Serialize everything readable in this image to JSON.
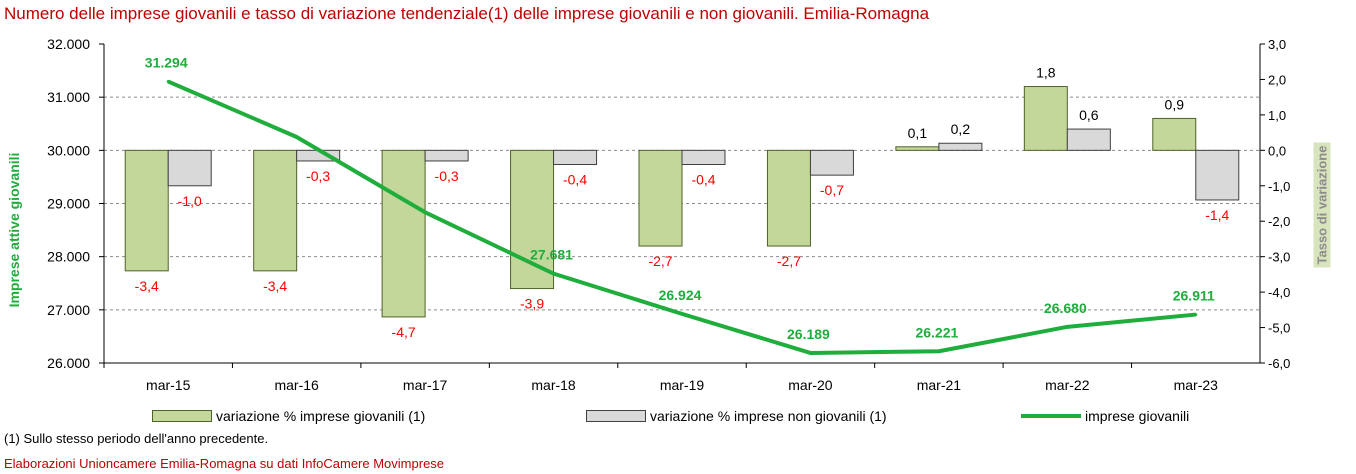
{
  "title": "Numero delle imprese giovanili e tasso di variazione tendenziale(1) delle imprese giovanili e non giovanili. Emilia-Romagna",
  "footnote": "(1) Sullo stesso periodo dell'anno precedente.",
  "source": "Elaborazioni Unioncamere Emilia-Romagna su dati InfoCamere Movimprese",
  "chart_data": {
    "type": "bar",
    "categories": [
      "mar-15",
      "mar-16",
      "mar-17",
      "mar-18",
      "mar-19",
      "mar-20",
      "mar-21",
      "mar-22",
      "mar-23"
    ],
    "series": [
      {
        "name": "variazione % imprese giovanili (1)",
        "kind": "bar",
        "axis": "right",
        "values": [
          -3.4,
          -3.4,
          -4.7,
          -3.9,
          -2.7,
          -2.7,
          0.1,
          1.8,
          0.9
        ],
        "labels": [
          "-3,4",
          "-3,4",
          "-4,7",
          "-3,9",
          "-2,7",
          "-2,7",
          "0,1",
          "1,8",
          "0,9"
        ]
      },
      {
        "name": "variazione % imprese non giovanili (1)",
        "kind": "bar",
        "axis": "right",
        "values": [
          -1.0,
          -0.3,
          -0.3,
          -0.4,
          -0.4,
          -0.7,
          0.2,
          0.6,
          -1.4
        ],
        "labels": [
          "-1,0",
          "-0,3",
          "-0,3",
          "-0,4",
          "-0,4",
          "-0,7",
          "0,2",
          "0,6",
          "-1,4"
        ]
      },
      {
        "name": "imprese giovanili",
        "kind": "line",
        "axis": "left",
        "values": [
          31294,
          30251,
          28835,
          27681,
          26924,
          26189,
          26221,
          26680,
          26911
        ],
        "labels": [
          "31.294",
          "",
          "",
          "27.681",
          "26.924",
          "26.189",
          "26.221",
          "26.680",
          "26.911"
        ]
      }
    ],
    "ylabel_left": "Imprese attive giovanili",
    "ylabel_right": "Tasso di variazione",
    "ylim_left": [
      26000,
      32000
    ],
    "ylim_right": [
      -6,
      3
    ],
    "yticks_left": [
      "26.000",
      "27.000",
      "28.000",
      "29.000",
      "30.000",
      "31.000",
      "32.000"
    ],
    "yticks_right": [
      "-6,0",
      "-5,0",
      "-4,0",
      "-3,0",
      "-2,0",
      "-1,0",
      "0,0",
      "1,0",
      "2,0",
      "3,0"
    ],
    "grid": true,
    "legend_position": "bottom",
    "colors": {
      "young_bar": "#c4d79b",
      "young_bar_border": "#4f6228",
      "nonyoung_bar": "#d9d9d9",
      "nonyoung_bar_border": "#404040",
      "line": "#1fad3c",
      "bar_labels": "#ff0000",
      "title": "#c00000"
    }
  }
}
